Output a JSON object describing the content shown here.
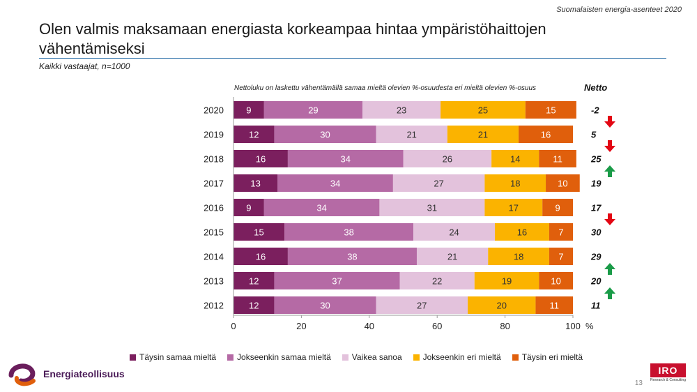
{
  "header": {
    "top_right": "Suomalaisten energia-asenteet 2020"
  },
  "title": "Olen valmis maksamaan energiasta korkeampaa hintaa ympäristöhaittojen vähentämiseksi",
  "subtitle": "Kaikki vastaajat, n=1000",
  "note": "Nettoluku on laskettu vähentämällä samaa mieltä olevien %-osuudesta eri mieltä olevien %-osuus",
  "netto_header": "Netto",
  "axis_unit": "%",
  "logo_left_text": "Energiateollisuus",
  "logo_right_text": "IRO",
  "logo_right_sub": "Research & Consulting",
  "page_number": "13",
  "icons": {
    "down": "down-arrow-icon",
    "up": "up-arrow-icon"
  },
  "chart_data": {
    "type": "bar",
    "orientation": "horizontal",
    "stacked": true,
    "categories": [
      "2020",
      "2019",
      "2018",
      "2017",
      "2016",
      "2015",
      "2014",
      "2013",
      "2012"
    ],
    "series": [
      {
        "name": "Täysin samaa mieltä",
        "color": "#7b1f5e",
        "values": [
          9,
          12,
          16,
          13,
          9,
          15,
          16,
          12,
          12
        ]
      },
      {
        "name": "Jokseenkin samaa mieltä",
        "color": "#b56aa5",
        "values": [
          29,
          30,
          34,
          34,
          34,
          38,
          38,
          37,
          30
        ]
      },
      {
        "name": "Vaikea sanoa",
        "color": "#e3c2dc",
        "values": [
          23,
          21,
          26,
          27,
          31,
          24,
          21,
          22,
          27
        ]
      },
      {
        "name": "Jokseenkin eri mieltä",
        "color": "#fbb300",
        "values": [
          25,
          21,
          14,
          18,
          17,
          16,
          18,
          19,
          20
        ]
      },
      {
        "name": "Täysin eri mieltä",
        "color": "#e05f0c",
        "values": [
          15,
          16,
          11,
          10,
          9,
          7,
          7,
          10,
          11
        ]
      }
    ],
    "netto": [
      "-2",
      "5",
      "25",
      "19",
      "17",
      "30",
      "29",
      "20",
      "11"
    ],
    "trend_arrows": [
      {
        "between": [
          "2020",
          "2019"
        ],
        "direction": "down",
        "color": "#e30613"
      },
      {
        "between": [
          "2019",
          "2018"
        ],
        "direction": "down",
        "color": "#e30613"
      },
      {
        "between": [
          "2018",
          "2017"
        ],
        "direction": "up",
        "color": "#1a9b48"
      },
      {
        "between": [
          "2016",
          "2015"
        ],
        "direction": "down",
        "color": "#e30613"
      },
      {
        "between": [
          "2014",
          "2013"
        ],
        "direction": "up",
        "color": "#1a9b48"
      },
      {
        "between": [
          "2013",
          "2012"
        ],
        "direction": "up",
        "color": "#1a9b48"
      }
    ],
    "xlim": [
      0,
      100
    ],
    "xticks": [
      "0",
      "20",
      "40",
      "60",
      "80",
      "100"
    ],
    "grid": false,
    "legend_position": "bottom"
  }
}
